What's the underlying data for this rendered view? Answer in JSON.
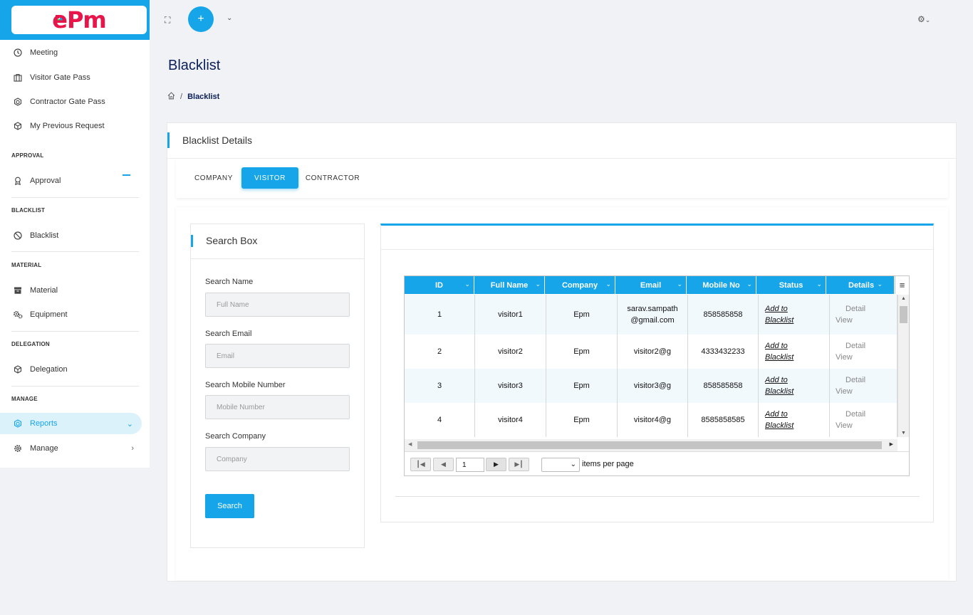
{
  "brand": {
    "logo_text": "ePm",
    "colors": {
      "accent": "#15a5e8",
      "logo": "#e8154b",
      "title": "#0b1f5a"
    }
  },
  "topbar": {
    "expand_icon": "expand-icon",
    "add_icon": "plus-icon",
    "caret_icon": "chevron-down-icon",
    "settings_icon": "gear-icon"
  },
  "sidebar": {
    "items": [
      {
        "label": "Meeting",
        "icon": "clock-icon"
      },
      {
        "label": "Visitor Gate Pass",
        "icon": "briefcase-icon"
      },
      {
        "label": "Contractor Gate Pass",
        "icon": "cube-network-icon"
      },
      {
        "label": "My Previous Request",
        "icon": "box-icon"
      }
    ],
    "sections": {
      "approval": {
        "title": "APPROVAL",
        "items": [
          {
            "label": "Approval",
            "icon": "award-icon"
          }
        ]
      },
      "blacklist": {
        "title": "BLACKLIST",
        "items": [
          {
            "label": "Blacklist",
            "icon": "ban-icon"
          }
        ]
      },
      "material": {
        "title": "MATERIAL",
        "items": [
          {
            "label": "Material",
            "icon": "boxes-icon"
          },
          {
            "label": "Equipment",
            "icon": "gears-icon"
          }
        ]
      },
      "delegation": {
        "title": "DELEGATION",
        "items": [
          {
            "label": "Delegation",
            "icon": "box-icon"
          }
        ]
      },
      "manage": {
        "title": "MANAGE",
        "items": [
          {
            "label": "Reports",
            "icon": "cube-network-icon",
            "active": true
          },
          {
            "label": "Manage",
            "icon": "gear-icon"
          }
        ]
      }
    }
  },
  "page": {
    "title": "Blacklist",
    "breadcrumb": {
      "current": "Blacklist",
      "separator": "/"
    }
  },
  "card": {
    "title": "Blacklist Details",
    "tabs": [
      {
        "label": "COMPANY"
      },
      {
        "label": "VISITOR",
        "active": true
      },
      {
        "label": "CONTRACTOR"
      }
    ]
  },
  "search": {
    "title": "Search Box",
    "fields": [
      {
        "label": "Search Name",
        "placeholder": "Full Name"
      },
      {
        "label": "Search Email",
        "placeholder": "Email"
      },
      {
        "label": "Search Mobile Number",
        "placeholder": "Mobile Number"
      },
      {
        "label": "Search Company",
        "placeholder": "Company"
      }
    ],
    "button_label": "Search"
  },
  "grid": {
    "columns": [
      "ID",
      "Full Name",
      "Company",
      "Email",
      "Mobile No",
      "Status",
      "Details"
    ],
    "menu_icon": "menu-icon",
    "rows": [
      {
        "id": "1",
        "name": "visitor1",
        "company": "Epm",
        "email": "sarav.sampath@gmail.com",
        "mobile": "858585858",
        "status": "Add to Blacklist",
        "details": "Detail View"
      },
      {
        "id": "2",
        "name": "visitor2",
        "company": "Epm",
        "email": "visitor2@g",
        "mobile": "4333432233",
        "status": "Add to Blacklist",
        "details": "Detail View"
      },
      {
        "id": "3",
        "name": "visitor3",
        "company": "Epm",
        "email": "visitor3@g",
        "mobile": "858585858",
        "status": "Add to Blacklist",
        "details": "Detail View"
      },
      {
        "id": "4",
        "name": "visitor4",
        "company": "Epm",
        "email": "visitor4@g",
        "mobile": "8585858585",
        "status": "Add to Blacklist",
        "details": "Detail View"
      }
    ],
    "pager": {
      "page": "1",
      "items_per_page_label": "items per page",
      "page_size": ""
    }
  }
}
